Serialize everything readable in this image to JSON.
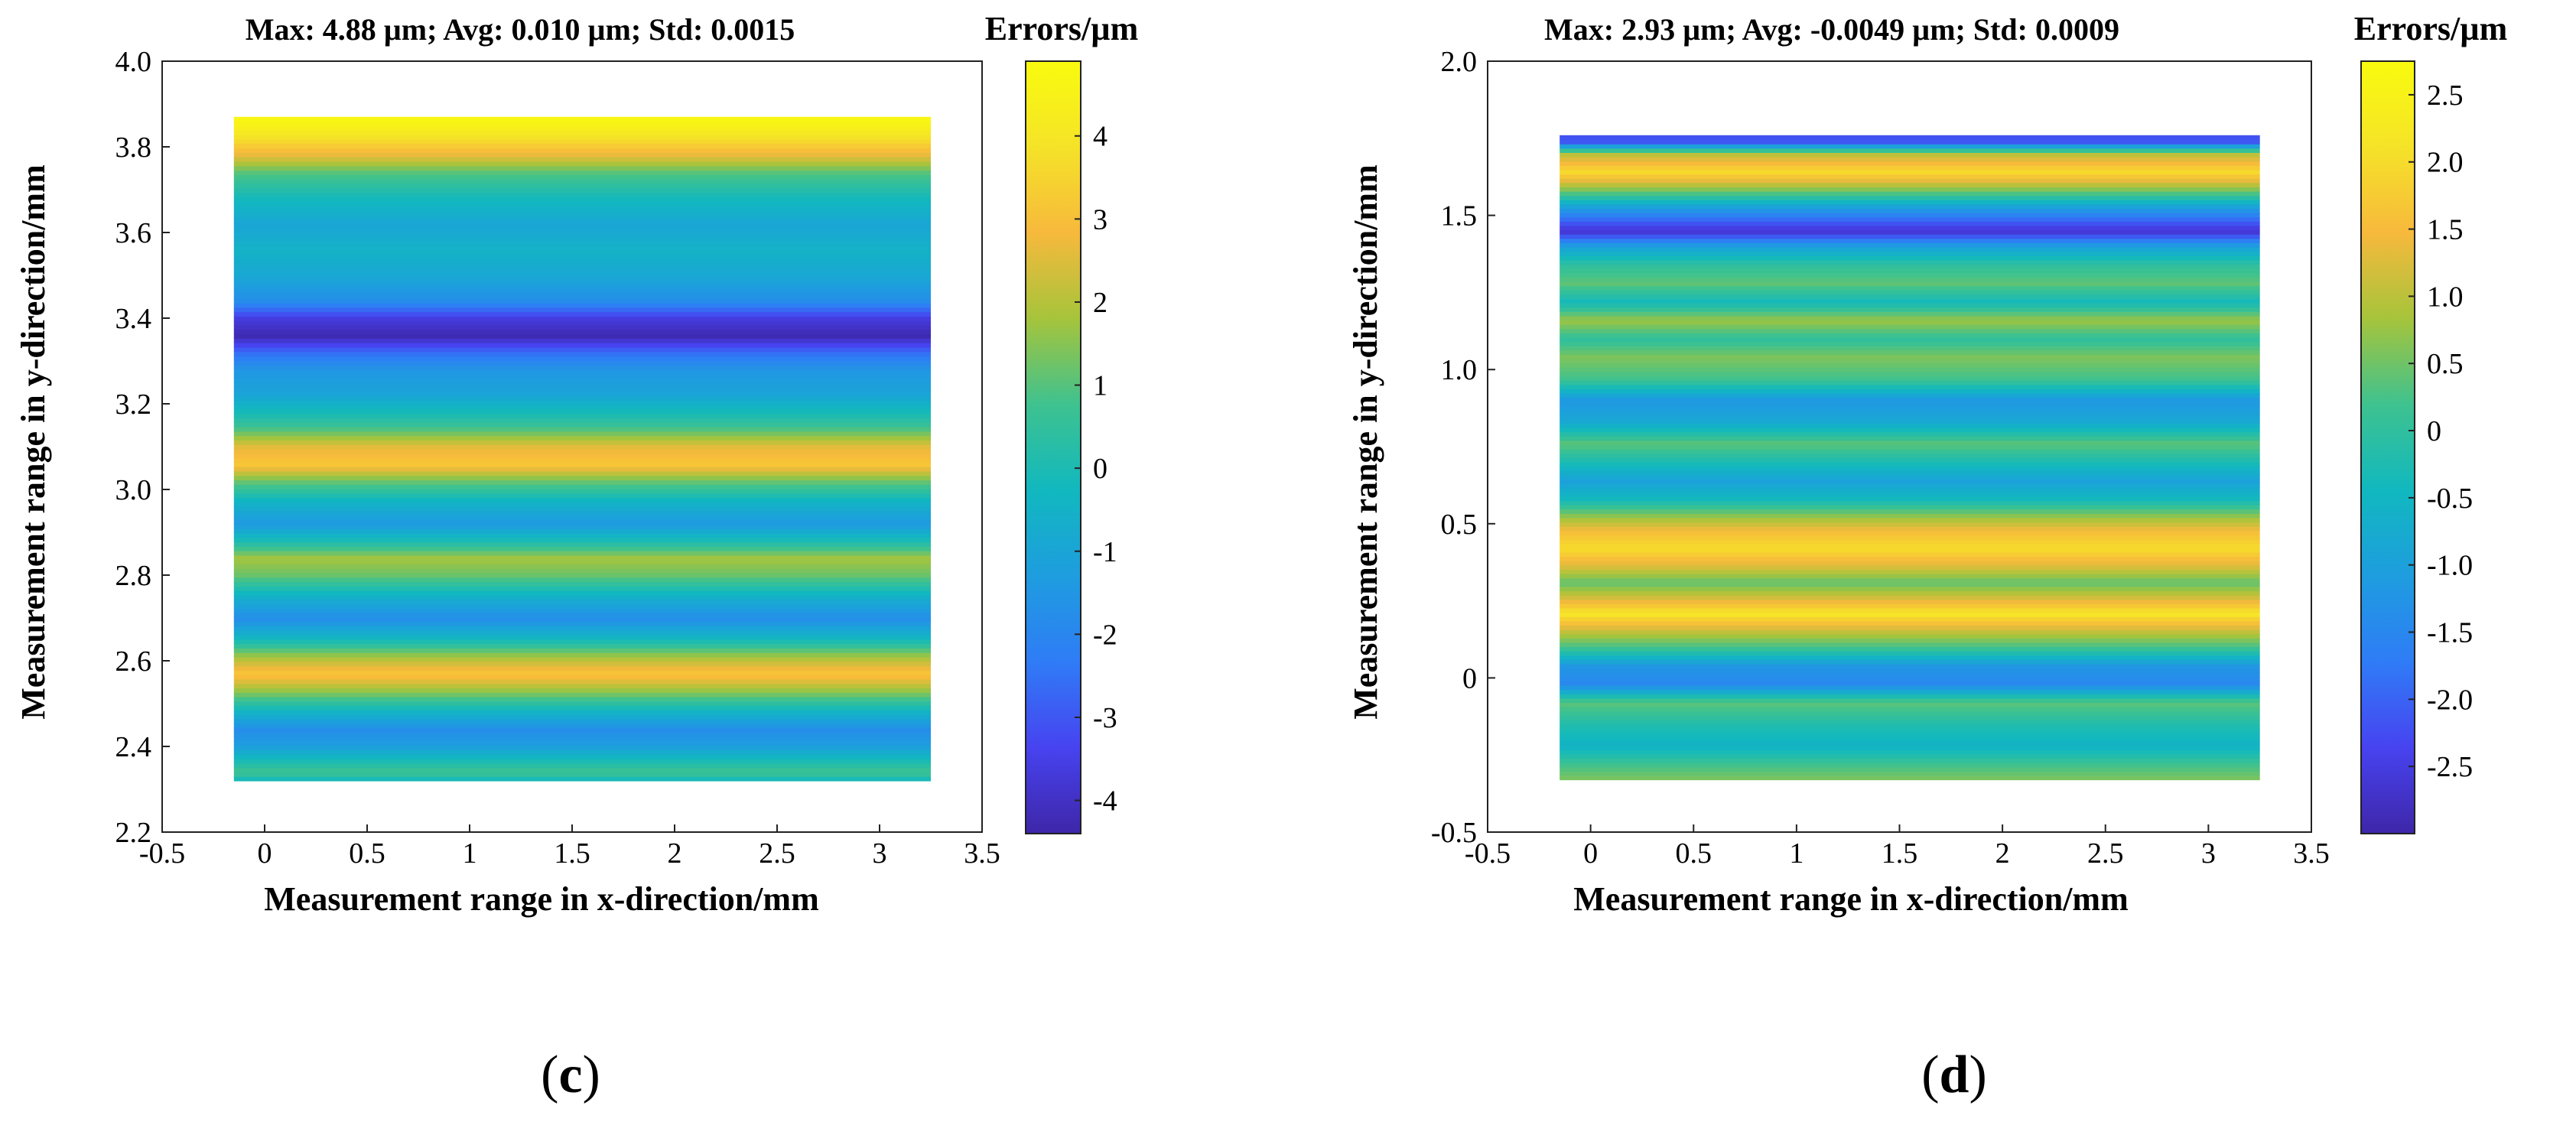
{
  "chart_data": [
    {
      "type": "heatmap",
      "panel_label": "c",
      "title": "Max: 4.88 µm; Avg: 0.010 µm; Std: 0.0015",
      "xlabel": "Measurement range in x-direction/mm",
      "ylabel": "Measurement range in y-direction/mm",
      "xlim": [
        -0.5,
        3.5
      ],
      "ylim": [
        2.2,
        4.0
      ],
      "xticks": [
        -0.5,
        0,
        0.5,
        1,
        1.5,
        2,
        2.5,
        3,
        3.5
      ],
      "xtick_labels": [
        "-0.5",
        "0",
        "0.5",
        "1",
        "1.5",
        "2",
        "2.5",
        "3",
        "3.5"
      ],
      "yticks": [
        2.2,
        2.4,
        2.6,
        2.8,
        3.0,
        3.2,
        3.4,
        3.6,
        3.8,
        4.0
      ],
      "ytick_labels": [
        "2.2",
        "2.4",
        "2.6",
        "2.8",
        "3.0",
        "3.2",
        "3.4",
        "3.6",
        "3.8",
        "4.0"
      ],
      "data_extent": {
        "x": [
          -0.15,
          3.25
        ],
        "y": [
          2.32,
          3.87
        ]
      },
      "colorbar": {
        "title": "Errors/µm",
        "range": [
          -4.4,
          4.9
        ],
        "ticks": [
          4,
          3,
          2,
          1,
          0,
          -1,
          -2,
          -3,
          -4
        ],
        "tick_labels": [
          "4",
          "3",
          "2",
          "1",
          "0",
          "-1",
          "-2",
          "-3",
          "-4"
        ],
        "colormap": [
          "#3e26a8",
          "#4743f0",
          "#2f7cf6",
          "#1e9ddf",
          "#11b8bf",
          "#3ec28f",
          "#a6c43b",
          "#f7b93c",
          "#f5e328",
          "#f9fb0e"
        ]
      },
      "profile": [
        {
          "y": 2.32,
          "v": -0.4
        },
        {
          "y": 2.34,
          "v": 0.8
        },
        {
          "y": 2.36,
          "v": 0.2
        },
        {
          "y": 2.4,
          "v": -1.2
        },
        {
          "y": 2.44,
          "v": -1.8
        },
        {
          "y": 2.48,
          "v": -0.5
        },
        {
          "y": 2.53,
          "v": 1.6
        },
        {
          "y": 2.57,
          "v": 3.2
        },
        {
          "y": 2.61,
          "v": 1.8
        },
        {
          "y": 2.65,
          "v": -0.2
        },
        {
          "y": 2.7,
          "v": -1.8
        },
        {
          "y": 2.75,
          "v": -0.6
        },
        {
          "y": 2.8,
          "v": 1.2
        },
        {
          "y": 2.84,
          "v": 1.8
        },
        {
          "y": 2.88,
          "v": 0.0
        },
        {
          "y": 2.92,
          "v": -1.4
        },
        {
          "y": 2.97,
          "v": -0.5
        },
        {
          "y": 3.02,
          "v": 1.2
        },
        {
          "y": 3.06,
          "v": 3.2
        },
        {
          "y": 3.1,
          "v": 2.6
        },
        {
          "y": 3.15,
          "v": 0.6
        },
        {
          "y": 3.22,
          "v": -1.0
        },
        {
          "y": 3.28,
          "v": -1.5
        },
        {
          "y": 3.32,
          "v": -2.6
        },
        {
          "y": 3.36,
          "v": -4.3
        },
        {
          "y": 3.4,
          "v": -3.6
        },
        {
          "y": 3.44,
          "v": -1.8
        },
        {
          "y": 3.5,
          "v": -0.9
        },
        {
          "y": 3.56,
          "v": -0.5
        },
        {
          "y": 3.62,
          "v": -1.0
        },
        {
          "y": 3.68,
          "v": -0.2
        },
        {
          "y": 3.74,
          "v": 1.0
        },
        {
          "y": 3.78,
          "v": 2.6
        },
        {
          "y": 3.82,
          "v": 3.8
        },
        {
          "y": 3.86,
          "v": 4.7
        }
      ]
    },
    {
      "type": "heatmap",
      "panel_label": "d",
      "title": "Max: 2.93 µm; Avg: -0.0049 µm; Std: 0.0009",
      "xlabel": "Measurement range in x-direction/mm",
      "ylabel": "Measurement range in y-direction/mm",
      "xlim": [
        -0.5,
        3.5
      ],
      "ylim": [
        -0.5,
        2.0
      ],
      "xticks": [
        -0.5,
        0,
        0.5,
        1,
        1.5,
        2,
        2.5,
        3,
        3.5
      ],
      "xtick_labels": [
        "-0.5",
        "0",
        "0.5",
        "1",
        "1.5",
        "2",
        "2.5",
        "3",
        "3.5"
      ],
      "yticks": [
        -0.5,
        0,
        0.5,
        1.0,
        1.5,
        2.0
      ],
      "ytick_labels": [
        "-0.5",
        "0",
        "0.5",
        "1.0",
        "1.5",
        "2.0"
      ],
      "data_extent": {
        "x": [
          -0.15,
          3.25
        ],
        "y": [
          -0.33,
          1.76
        ]
      },
      "colorbar": {
        "title": "Errors/µm",
        "range": [
          -3.0,
          2.75
        ],
        "ticks": [
          2.5,
          2.0,
          1.5,
          1.0,
          0.5,
          0,
          -0.5,
          -1.0,
          -1.5,
          -2.0,
          -2.5
        ],
        "tick_labels": [
          "2.5",
          "2.0",
          "1.5",
          "1.0",
          "0.5",
          "0",
          "-0.5",
          "-1.0",
          "-1.5",
          "-2.0",
          "-2.5"
        ],
        "colormap": [
          "#3e26a8",
          "#4743f0",
          "#2f7cf6",
          "#1e9ddf",
          "#11b8bf",
          "#3ec28f",
          "#a6c43b",
          "#f7b93c",
          "#f5e328",
          "#f9fb0e"
        ]
      },
      "profile": [
        {
          "y": -0.33,
          "v": 0.6
        },
        {
          "y": -0.28,
          "v": 0.2
        },
        {
          "y": -0.22,
          "v": -0.6
        },
        {
          "y": -0.15,
          "v": -0.2
        },
        {
          "y": -0.08,
          "v": 0.4
        },
        {
          "y": -0.02,
          "v": -1.5
        },
        {
          "y": 0.04,
          "v": -1.2
        },
        {
          "y": 0.1,
          "v": 0.2
        },
        {
          "y": 0.16,
          "v": 1.2
        },
        {
          "y": 0.21,
          "v": 2.2
        },
        {
          "y": 0.26,
          "v": 1.2
        },
        {
          "y": 0.31,
          "v": 0.4
        },
        {
          "y": 0.36,
          "v": 1.2
        },
        {
          "y": 0.42,
          "v": 2.0
        },
        {
          "y": 0.47,
          "v": 1.6
        },
        {
          "y": 0.52,
          "v": 0.8
        },
        {
          "y": 0.58,
          "v": -0.4
        },
        {
          "y": 0.64,
          "v": -1.0
        },
        {
          "y": 0.7,
          "v": -0.3
        },
        {
          "y": 0.76,
          "v": 0.4
        },
        {
          "y": 0.83,
          "v": -0.8
        },
        {
          "y": 0.9,
          "v": -1.2
        },
        {
          "y": 0.97,
          "v": 0.2
        },
        {
          "y": 1.04,
          "v": 0.6
        },
        {
          "y": 1.1,
          "v": 0.0
        },
        {
          "y": 1.16,
          "v": 0.8
        },
        {
          "y": 1.22,
          "v": -0.4
        },
        {
          "y": 1.28,
          "v": 0.4
        },
        {
          "y": 1.34,
          "v": 0.0
        },
        {
          "y": 1.4,
          "v": -1.0
        },
        {
          "y": 1.45,
          "v": -2.7
        },
        {
          "y": 1.52,
          "v": -1.2
        },
        {
          "y": 1.58,
          "v": 0.5
        },
        {
          "y": 1.64,
          "v": 2.0
        },
        {
          "y": 1.7,
          "v": 1.0
        },
        {
          "y": 1.74,
          "v": -2.2
        }
      ]
    }
  ]
}
